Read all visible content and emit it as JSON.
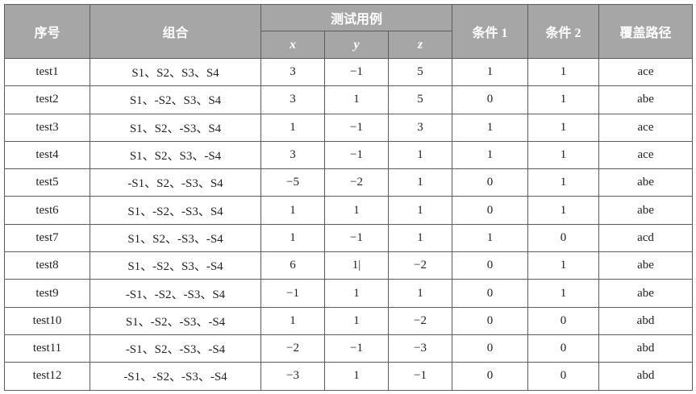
{
  "table": {
    "headers": {
      "index": "序号",
      "combo": "组合",
      "test_case": "测试用例",
      "x": "x",
      "y": "y",
      "z": "z",
      "cond1": "条件 1",
      "cond2": "条件 2",
      "path": "覆盖路径"
    },
    "rows": [
      {
        "id": "test1",
        "combo": "S1、S2、S3、S4",
        "x": "3",
        "y": "−1",
        "z": "5",
        "cond1": "1",
        "cond2": "1",
        "path": "ace"
      },
      {
        "id": "test2",
        "combo": "S1、-S2、S3、S4",
        "x": "3",
        "y": "1",
        "z": "5",
        "cond1": "0",
        "cond2": "1",
        "path": "abe"
      },
      {
        "id": "test3",
        "combo": "S1、S2、-S3、S4",
        "x": "1",
        "y": "−1",
        "z": "3",
        "cond1": "1",
        "cond2": "1",
        "path": "ace"
      },
      {
        "id": "test4",
        "combo": "S1、S2、S3、-S4",
        "x": "3",
        "y": "−1",
        "z": "1",
        "cond1": "1",
        "cond2": "1",
        "path": "ace"
      },
      {
        "id": "test5",
        "combo": "-S1、S2、-S3、S4",
        "x": "−5",
        "y": "−2",
        "z": "1",
        "cond1": "0",
        "cond2": "1",
        "path": "abe"
      },
      {
        "id": "test6",
        "combo": "S1、-S2、-S3、S4",
        "x": "1",
        "y": "1",
        "z": "1",
        "cond1": "0",
        "cond2": "1",
        "path": "abe"
      },
      {
        "id": "test7",
        "combo": "S1、S2、-S3、-S4",
        "x": "1",
        "y": "−1",
        "z": "1",
        "cond1": "1",
        "cond2": "0",
        "path": "acd"
      },
      {
        "id": "test8",
        "combo": "S1、-S2、S3、-S4",
        "x": "6",
        "y": "1|",
        "z": "−2",
        "cond1": "0",
        "cond2": "1",
        "path": "abe"
      },
      {
        "id": "test9",
        "combo": "-S1、-S2、-S3、S4",
        "x": "−1",
        "y": "1",
        "z": "1",
        "cond1": "0",
        "cond2": "1",
        "path": "abe"
      },
      {
        "id": "test10",
        "combo": "S1、-S2、-S3、-S4",
        "x": "1",
        "y": "1",
        "z": "−2",
        "cond1": "0",
        "cond2": "0",
        "path": "abd"
      },
      {
        "id": "test11",
        "combo": "-S1、S2、-S3、-S4",
        "x": "−2",
        "y": "−1",
        "z": "−3",
        "cond1": "0",
        "cond2": "0",
        "path": "abd"
      },
      {
        "id": "test12",
        "combo": "-S1、-S2、-S3、-S4",
        "x": "−3",
        "y": "1",
        "z": "−1",
        "cond1": "0",
        "cond2": "0",
        "path": "abd"
      }
    ]
  }
}
